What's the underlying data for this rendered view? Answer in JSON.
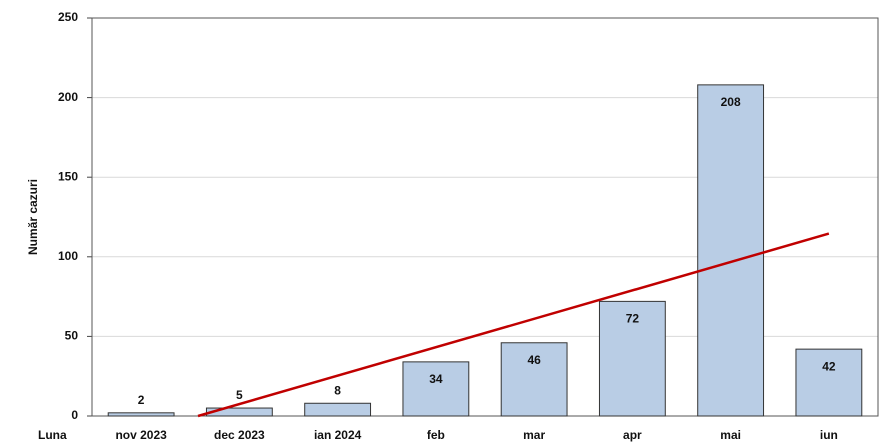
{
  "chart_data": {
    "type": "bar",
    "y_label": "Număr cazuri",
    "x_label": "Luna",
    "categories": [
      "nov 2023",
      "dec 2023",
      "ian 2024",
      "feb",
      "mar",
      "apr",
      "mai",
      "iun"
    ],
    "values": [
      2,
      5,
      8,
      34,
      46,
      72,
      208,
      42
    ],
    "color": "#b9cde5",
    "ylim": [
      0,
      250
    ],
    "yticks": [
      0,
      50,
      100,
      150,
      200,
      250
    ],
    "grid": true,
    "trendline": {
      "type": "linear",
      "color": "#c00000"
    }
  }
}
